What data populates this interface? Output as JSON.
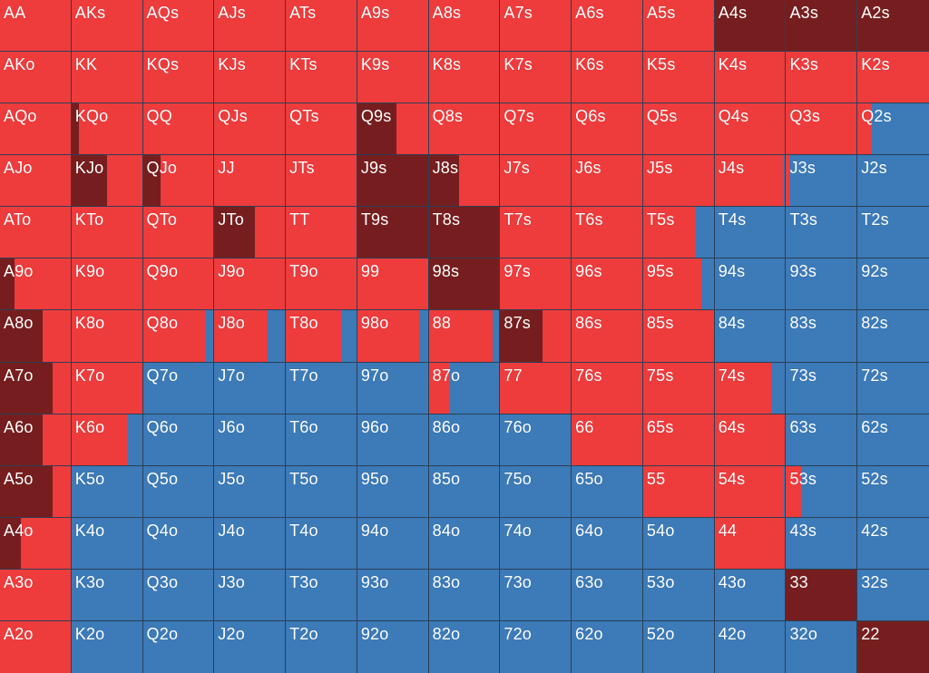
{
  "colors": {
    "raise": "#761e1f",
    "call": "#ee3b3c",
    "fold": "#3c7ab8"
  },
  "hands": [
    [
      "AA",
      "AKs",
      "AQs",
      "AJs",
      "ATs",
      "A9s",
      "A8s",
      "A7s",
      "A6s",
      "A5s",
      "A4s",
      "A3s",
      "A2s"
    ],
    [
      "AKo",
      "KK",
      "KQs",
      "KJs",
      "KTs",
      "K9s",
      "K8s",
      "K7s",
      "K6s",
      "K5s",
      "K4s",
      "K3s",
      "K2s"
    ],
    [
      "AQo",
      "KQo",
      "QQ",
      "QJs",
      "QTs",
      "Q9s",
      "Q8s",
      "Q7s",
      "Q6s",
      "Q5s",
      "Q4s",
      "Q3s",
      "Q2s"
    ],
    [
      "AJo",
      "KJo",
      "QJo",
      "JJ",
      "JTs",
      "J9s",
      "J8s",
      "J7s",
      "J6s",
      "J5s",
      "J4s",
      "J3s",
      "J2s"
    ],
    [
      "ATo",
      "KTo",
      "QTo",
      "JTo",
      "TT",
      "T9s",
      "T8s",
      "T7s",
      "T6s",
      "T5s",
      "T4s",
      "T3s",
      "T2s"
    ],
    [
      "A9o",
      "K9o",
      "Q9o",
      "J9o",
      "T9o",
      "99",
      "98s",
      "97s",
      "96s",
      "95s",
      "94s",
      "93s",
      "92s"
    ],
    [
      "A8o",
      "K8o",
      "Q8o",
      "J8o",
      "T8o",
      "98o",
      "88",
      "87s",
      "86s",
      "85s",
      "84s",
      "83s",
      "82s"
    ],
    [
      "A7o",
      "K7o",
      "Q7o",
      "J7o",
      "T7o",
      "97o",
      "87o",
      "77",
      "76s",
      "75s",
      "74s",
      "73s",
      "72s"
    ],
    [
      "A6o",
      "K6o",
      "Q6o",
      "J6o",
      "T6o",
      "96o",
      "86o",
      "76o",
      "66",
      "65s",
      "64s",
      "63s",
      "62s"
    ],
    [
      "A5o",
      "K5o",
      "Q5o",
      "J5o",
      "T5o",
      "95o",
      "85o",
      "75o",
      "65o",
      "55",
      "54s",
      "53s",
      "52s"
    ],
    [
      "A4o",
      "K4o",
      "Q4o",
      "J4o",
      "T4o",
      "94o",
      "84o",
      "74o",
      "64o",
      "54o",
      "44",
      "43s",
      "42s"
    ],
    [
      "A3o",
      "K3o",
      "Q3o",
      "J3o",
      "T3o",
      "93o",
      "83o",
      "73o",
      "63o",
      "53o",
      "43o",
      "33",
      "32s"
    ],
    [
      "A2o",
      "K2o",
      "Q2o",
      "J2o",
      "T2o",
      "92o",
      "82o",
      "72o",
      "62o",
      "52o",
      "42o",
      "32o",
      "22"
    ]
  ],
  "frequencies": [
    [
      [
        0,
        1
      ],
      [
        0,
        1
      ],
      [
        0,
        1
      ],
      [
        0,
        1
      ],
      [
        0,
        1
      ],
      [
        0,
        1
      ],
      [
        0,
        1
      ],
      [
        0,
        1
      ],
      [
        0,
        1
      ],
      [
        0,
        1
      ],
      [
        1,
        0
      ],
      [
        1,
        0
      ],
      [
        1,
        0
      ]
    ],
    [
      [
        0,
        1
      ],
      [
        0,
        1
      ],
      [
        0,
        1
      ],
      [
        0,
        1
      ],
      [
        0,
        1
      ],
      [
        0,
        1
      ],
      [
        0,
        1
      ],
      [
        0,
        1
      ],
      [
        0,
        1
      ],
      [
        0,
        1
      ],
      [
        0,
        1
      ],
      [
        0,
        1
      ],
      [
        0,
        1
      ]
    ],
    [
      [
        0,
        1
      ],
      [
        0.1,
        0.9
      ],
      [
        0,
        1
      ],
      [
        0,
        1
      ],
      [
        0,
        1
      ],
      [
        0.55,
        0.45
      ],
      [
        0,
        1
      ],
      [
        0,
        1
      ],
      [
        0,
        1
      ],
      [
        0,
        1
      ],
      [
        0,
        1
      ],
      [
        0,
        1
      ],
      [
        0,
        0.2
      ]
    ],
    [
      [
        0,
        1
      ],
      [
        0.5,
        0.5
      ],
      [
        0.25,
        0.75
      ],
      [
        0,
        1
      ],
      [
        0,
        1
      ],
      [
        1,
        0
      ],
      [
        0.43,
        0.57
      ],
      [
        0,
        1
      ],
      [
        0,
        1
      ],
      [
        0,
        1
      ],
      [
        0,
        0.97
      ],
      [
        0,
        0.05
      ],
      [
        0,
        0
      ]
    ],
    [
      [
        0,
        1
      ],
      [
        0,
        1
      ],
      [
        0,
        1
      ],
      [
        0.58,
        0.42
      ],
      [
        0,
        1
      ],
      [
        1,
        0
      ],
      [
        1,
        0
      ],
      [
        0,
        1
      ],
      [
        0,
        1
      ],
      [
        0,
        0.75
      ],
      [
        0,
        0
      ],
      [
        0,
        0
      ],
      [
        0,
        0
      ]
    ],
    [
      [
        0.2,
        0.8
      ],
      [
        0,
        1
      ],
      [
        0,
        1
      ],
      [
        0,
        1
      ],
      [
        0,
        1
      ],
      [
        0,
        1
      ],
      [
        1,
        0
      ],
      [
        0,
        1
      ],
      [
        0,
        1
      ],
      [
        0,
        0.82
      ],
      [
        0,
        0
      ],
      [
        0,
        0
      ],
      [
        0,
        0
      ]
    ],
    [
      [
        0.6,
        0.4
      ],
      [
        0,
        1
      ],
      [
        0,
        0.88
      ],
      [
        0,
        0.75
      ],
      [
        0,
        0.78
      ],
      [
        0,
        0.88
      ],
      [
        0,
        0.9
      ],
      [
        0.6,
        0.4
      ],
      [
        0,
        1
      ],
      [
        0,
        1
      ],
      [
        0,
        0
      ],
      [
        0,
        0
      ],
      [
        0,
        0
      ]
    ],
    [
      [
        0.75,
        0.25
      ],
      [
        0,
        1
      ],
      [
        0,
        0
      ],
      [
        0,
        0
      ],
      [
        0,
        0
      ],
      [
        0,
        0
      ],
      [
        0,
        0.3
      ],
      [
        0,
        1
      ],
      [
        0,
        1
      ],
      [
        0,
        1
      ],
      [
        0,
        0.8
      ],
      [
        0,
        0
      ],
      [
        0,
        0
      ]
    ],
    [
      [
        0.6,
        0.4
      ],
      [
        0,
        0.8
      ],
      [
        0,
        0
      ],
      [
        0,
        0
      ],
      [
        0,
        0
      ],
      [
        0,
        0
      ],
      [
        0,
        0
      ],
      [
        0,
        0
      ],
      [
        0,
        1
      ],
      [
        0,
        1
      ],
      [
        0,
        1
      ],
      [
        0,
        0
      ],
      [
        0,
        0
      ]
    ],
    [
      [
        0.75,
        0.25
      ],
      [
        0,
        0
      ],
      [
        0,
        0
      ],
      [
        0,
        0
      ],
      [
        0,
        0
      ],
      [
        0,
        0
      ],
      [
        0,
        0
      ],
      [
        0,
        0
      ],
      [
        0,
        0
      ],
      [
        0,
        1
      ],
      [
        0,
        0.98
      ],
      [
        0,
        0.23
      ],
      [
        0,
        0
      ]
    ],
    [
      [
        0.3,
        0.7
      ],
      [
        0,
        0
      ],
      [
        0,
        0
      ],
      [
        0,
        0
      ],
      [
        0,
        0
      ],
      [
        0,
        0
      ],
      [
        0,
        0
      ],
      [
        0,
        0
      ],
      [
        0,
        0
      ],
      [
        0,
        0
      ],
      [
        0,
        1
      ],
      [
        0,
        0
      ],
      [
        0,
        0
      ]
    ],
    [
      [
        0,
        1
      ],
      [
        0,
        0
      ],
      [
        0,
        0
      ],
      [
        0,
        0
      ],
      [
        0,
        0
      ],
      [
        0,
        0
      ],
      [
        0,
        0
      ],
      [
        0,
        0
      ],
      [
        0,
        0
      ],
      [
        0,
        0
      ],
      [
        0,
        0
      ],
      [
        1,
        0
      ],
      [
        0,
        0
      ]
    ],
    [
      [
        0,
        1
      ],
      [
        0,
        0
      ],
      [
        0,
        0
      ],
      [
        0,
        0
      ],
      [
        0,
        0
      ],
      [
        0,
        0
      ],
      [
        0,
        0
      ],
      [
        0,
        0
      ],
      [
        0,
        0
      ],
      [
        0,
        0
      ],
      [
        0,
        0
      ],
      [
        0,
        0
      ],
      [
        1,
        0
      ]
    ]
  ]
}
